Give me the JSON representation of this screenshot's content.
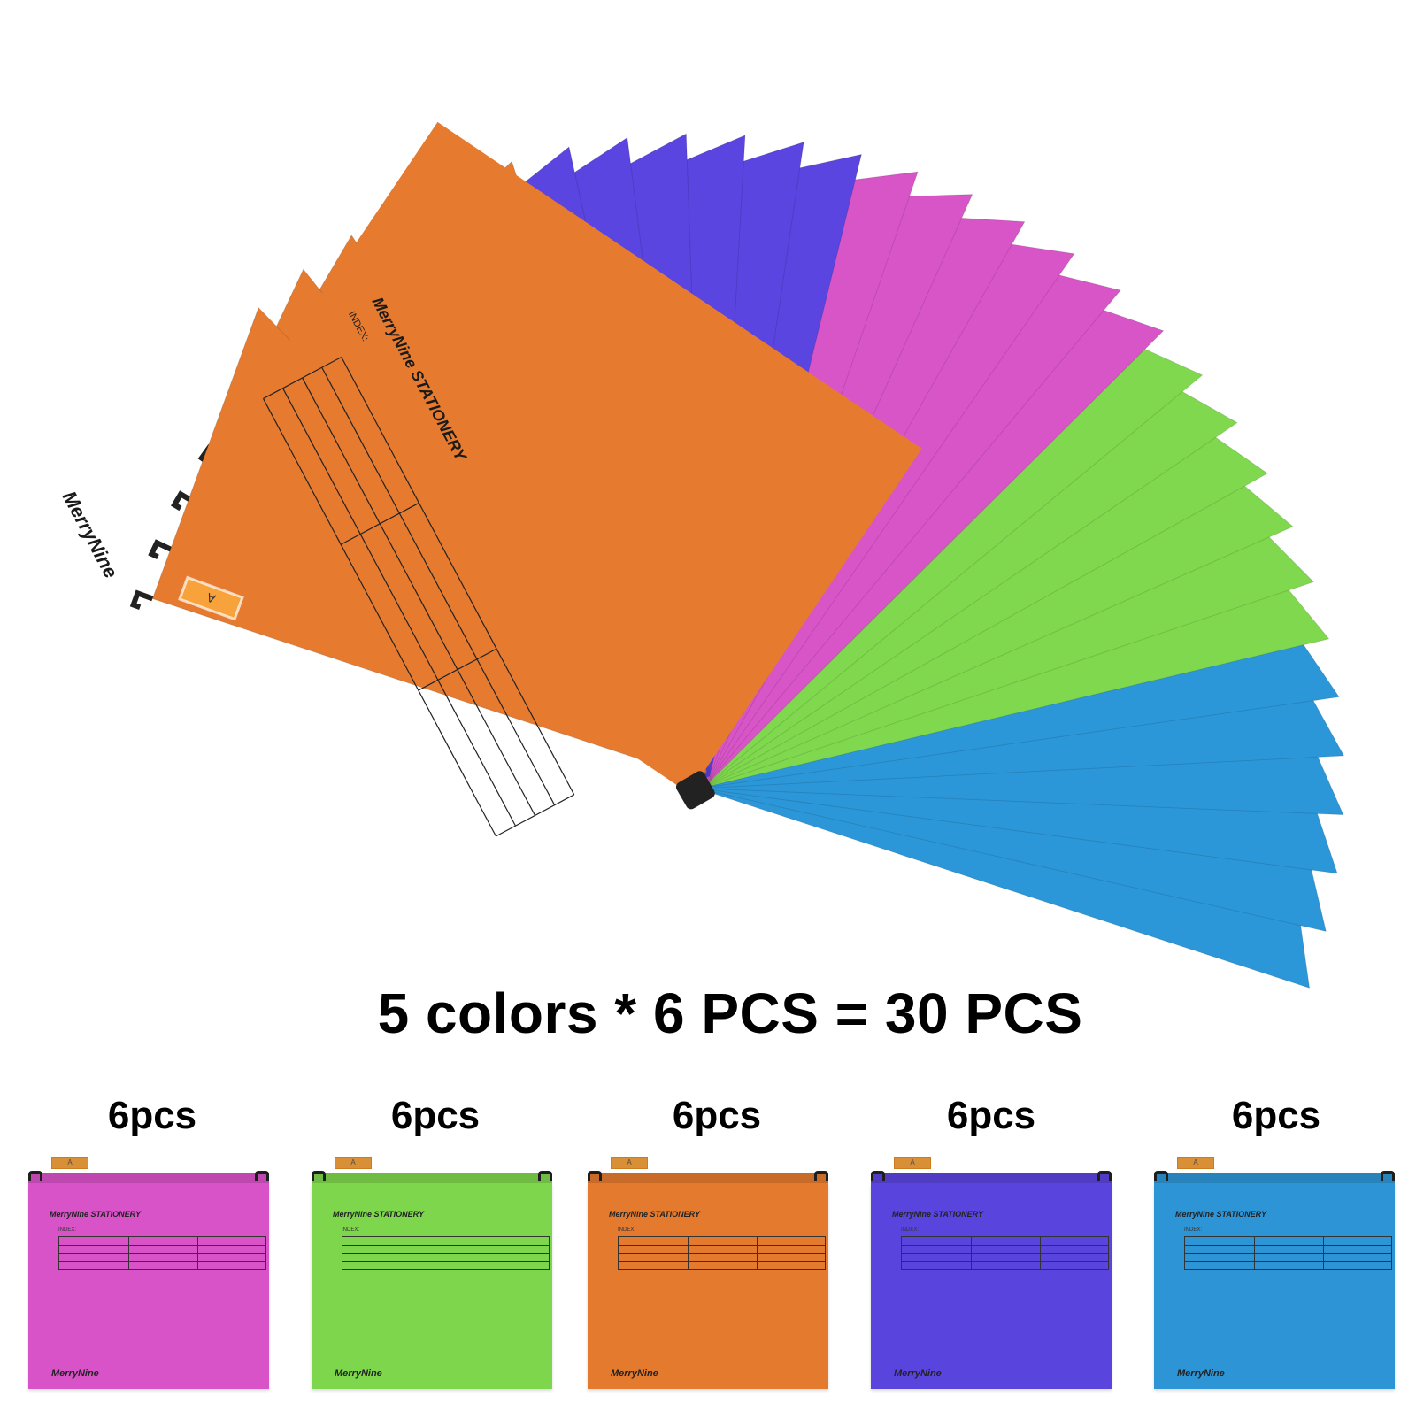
{
  "headline": "5 colors * 6 PCS = 30 PCS",
  "tab_letter": "A",
  "brand": "MerryNine",
  "front_folder": {
    "brand_header": "MerryNine STATIONERY",
    "index_label": "INDEX:",
    "brand_corner": "MerryNine"
  },
  "fan_colors": [
    "#e67b30",
    "#5a45e0",
    "#d855c8",
    "#80d84e",
    "#2c97d8"
  ],
  "folders": [
    {
      "count": "6pcs",
      "color": "#d852c8",
      "brand_header": "MerryNine STATIONERY",
      "index_label": "INDEX:",
      "brand_footer": "MerryNine"
    },
    {
      "count": "6pcs",
      "color": "#7ed64c",
      "brand_header": "MerryNine STATIONERY",
      "index_label": "INDEX:",
      "brand_footer": "MerryNine"
    },
    {
      "count": "6pcs",
      "color": "#e47a2e",
      "brand_header": "MerryNine STATIONERY",
      "index_label": "INDEX:",
      "brand_footer": "MerryNine"
    },
    {
      "count": "6pcs",
      "color": "#5a44de",
      "brand_header": "MerryNine STATIONERY",
      "index_label": "INDEX:",
      "brand_footer": "MerryNine"
    },
    {
      "count": "6pcs",
      "color": "#2d95d6",
      "brand_header": "MerryNine STATIONERY",
      "index_label": "INDEX:",
      "brand_footer": "MerryNine"
    }
  ]
}
